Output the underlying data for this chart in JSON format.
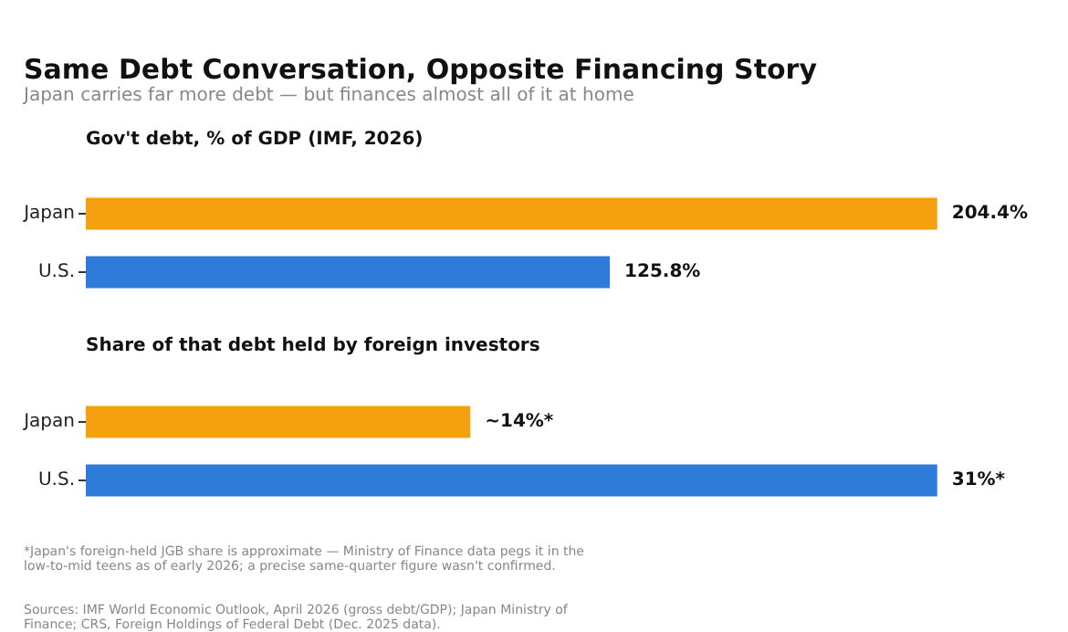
{
  "chart_data": [
    {
      "type": "bar",
      "orientation": "horizontal",
      "title": "Same Debt Conversation, Opposite Financing Story",
      "subtitle": "Japan carries far more debt — but finances almost all of it at home",
      "annotations": [
        "Gov't debt, % of GDP (IMF, 2026)"
      ],
      "categories": [
        "Japan",
        "U.S."
      ],
      "values": [
        204.4,
        125.8
      ],
      "colors": [
        "#f5a10f",
        "#2f7bd9"
      ],
      "value_labels": [
        "204.4%",
        "125.8%"
      ]
    },
    {
      "type": "bar",
      "orientation": "horizontal",
      "title": "Share of that debt held by foreign investors",
      "annotations": [
        "*Japan's foreign-held JGB share is approximate — Ministry of Finance data pegs it in the low-to-mid teens as of early 2026; a precise same-quarter figure wasn't confirmed.",
        "Sources: IMF World Economic Outlook, April 2026 (gross debt/GDP); Japan Ministry of Finance; CRS, Foreign Holdings of Federal Debt (Dec. 2025 data)."
      ],
      "categories": [
        "Japan",
        "U.S."
      ],
      "values": [
        14,
        31
      ],
      "colors": [
        "#f5a10f",
        "#2f7bd9"
      ],
      "value_labels": [
        "~14%*",
        "31%*"
      ]
    }
  ]
}
